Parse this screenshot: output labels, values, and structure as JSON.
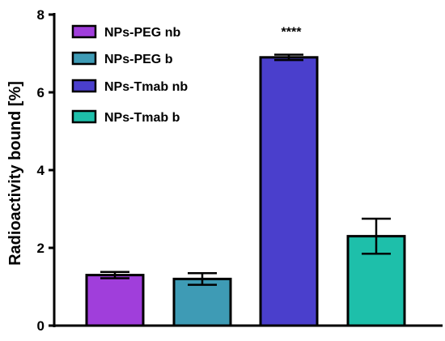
{
  "chart_data": {
    "type": "bar",
    "categories": [
      "NPs-PEG nb",
      "NPs-PEG b",
      "NPs-Tmab nb",
      "NPs-Tmab b"
    ],
    "values": [
      1.3,
      1.2,
      6.9,
      2.3
    ],
    "errors": [
      0.08,
      0.15,
      0.07,
      0.45
    ],
    "colors": [
      "#A03EDB",
      "#3E9BB5",
      "#4A3FCC",
      "#1EBFAA"
    ],
    "ylabel": "Radioactivity bound [%]",
    "xlabel": "",
    "ylim": [
      0,
      8
    ],
    "yticks": [
      0,
      2,
      4,
      6,
      8
    ],
    "grid": false,
    "legend": {
      "placement": "top-left",
      "entries": [
        "NPs-PEG nb",
        "NPs-PEG b",
        "NPs-Tmab nb",
        "NPs-Tmab b"
      ]
    },
    "annotations": [
      {
        "category_index": 2,
        "text": "****"
      }
    ]
  }
}
